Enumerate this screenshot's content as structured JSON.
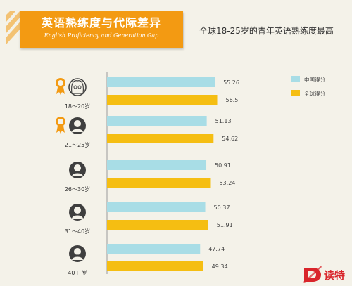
{
  "header": {
    "title": "英语熟练度与代际差异",
    "title_en": "English Proficiency and Generation Gap",
    "subtitle": "全球18-25岁的青年英语熟练度最高"
  },
  "brand": {
    "logo_text": "读特"
  },
  "colors": {
    "banner": "#f39a12",
    "china": "#a8dde6",
    "global": "#f5be12",
    "icon_dark": "#3f3f3f",
    "medal": "#f39a12"
  },
  "chart_data": {
    "type": "bar",
    "orientation": "horizontal",
    "categories": [
      "18～20岁",
      "21～25岁",
      "26～30岁",
      "31～40岁",
      "40+ 岁"
    ],
    "series": [
      {
        "name": "中国得分",
        "values": [
          55.26,
          51.13,
          50.91,
          50.37,
          47.74
        ]
      },
      {
        "name": "全球得分",
        "values": [
          56.5,
          54.62,
          53.24,
          51.91,
          49.34
        ]
      }
    ],
    "data_labels": [
      [
        "55.26",
        "51.13",
        "50.91",
        "50.37",
        "47.74"
      ],
      [
        "56.5",
        "54.62",
        "53.24",
        "51.91",
        "49.34"
      ]
    ],
    "value_axis": {
      "visible": false
    },
    "grid": false,
    "legend_position": "right",
    "category_icons": [
      "older-woman-icon",
      "young-man-icon",
      "man-icon",
      "headset-man-icon",
      "elder-man-icon"
    ],
    "medal_categories": [
      "18～20岁",
      "21～25岁"
    ]
  }
}
